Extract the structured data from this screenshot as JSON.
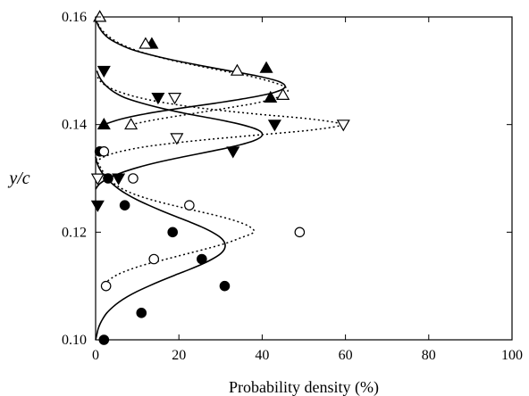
{
  "chart_data": {
    "type": "scatter",
    "title": "",
    "xlabel": "Probability density (%)",
    "ylabel": "y/c",
    "xlim": [
      0,
      100
    ],
    "ylim": [
      0.1,
      0.16
    ],
    "xticks": [
      "0",
      "20",
      "40",
      "60",
      "80",
      "100"
    ],
    "yticks": [
      "0.10",
      "0.12",
      "0.14",
      "0.16"
    ],
    "grid": false,
    "series": [
      {
        "marker": "filled-circle",
        "points": [
          [
            2,
            0.1
          ],
          [
            11,
            0.105
          ],
          [
            31,
            0.11
          ],
          [
            25.5,
            0.115
          ],
          [
            18.5,
            0.12
          ],
          [
            7,
            0.125
          ],
          [
            3,
            0.13
          ],
          [
            1,
            0.135
          ]
        ]
      },
      {
        "marker": "open-circle",
        "points": [
          [
            2.5,
            0.11
          ],
          [
            14,
            0.115
          ],
          [
            49,
            0.12
          ],
          [
            22.5,
            0.125
          ],
          [
            9,
            0.13
          ],
          [
            2,
            0.135
          ]
        ]
      },
      {
        "marker": "filled-triangle-down",
        "points": [
          [
            0.5,
            0.125
          ],
          [
            5.5,
            0.13
          ],
          [
            33,
            0.135
          ],
          [
            43,
            0.14
          ],
          [
            15,
            0.145
          ],
          [
            2,
            0.15
          ]
        ]
      },
      {
        "marker": "open-triangle-down",
        "points": [
          [
            0.5,
            0.13
          ],
          [
            19.5,
            0.1375
          ],
          [
            59.5,
            0.14
          ],
          [
            19,
            0.145
          ]
        ]
      },
      {
        "marker": "filled-triangle-up",
        "points": [
          [
            2,
            0.14
          ],
          [
            42,
            0.145
          ],
          [
            41,
            0.1505
          ],
          [
            13.5,
            0.155
          ],
          [
            1,
            0.16
          ]
        ]
      },
      {
        "marker": "open-triangle-up",
        "points": [
          [
            8.5,
            0.14
          ],
          [
            45,
            0.1455
          ],
          [
            34,
            0.15
          ],
          [
            12,
            0.155
          ],
          [
            1,
            0.16
          ]
        ]
      }
    ],
    "fitted_curves": [
      {
        "style": "solid",
        "points": [
          [
            0,
            0.1
          ],
          [
            0.3,
            0.101
          ],
          [
            0.6,
            0.102
          ],
          [
            1.1,
            0.103
          ],
          [
            1.8,
            0.104
          ],
          [
            2.7,
            0.105
          ],
          [
            4.0,
            0.106
          ],
          [
            5.6,
            0.107
          ],
          [
            7.6,
            0.108
          ],
          [
            10.0,
            0.109
          ],
          [
            12.8,
            0.11
          ],
          [
            15.8,
            0.111
          ],
          [
            19.0,
            0.112
          ],
          [
            22.3,
            0.113
          ],
          [
            25.4,
            0.114
          ],
          [
            28.0,
            0.115
          ],
          [
            30.0,
            0.116
          ],
          [
            31.0,
            0.117
          ],
          [
            31.0,
            0.118
          ],
          [
            30.0,
            0.119
          ],
          [
            28.0,
            0.12
          ],
          [
            25.4,
            0.121
          ],
          [
            22.3,
            0.122
          ],
          [
            19.0,
            0.123
          ],
          [
            15.8,
            0.124
          ],
          [
            12.8,
            0.125
          ],
          [
            10.0,
            0.126
          ],
          [
            7.6,
            0.127
          ],
          [
            5.6,
            0.128
          ],
          [
            4.0,
            0.129
          ],
          [
            2.7,
            0.13
          ],
          [
            1.6,
            0.131
          ],
          [
            0.8,
            0.132
          ],
          [
            0.3,
            0.133
          ],
          [
            0.0,
            0.134
          ]
        ]
      },
      {
        "style": "dotted",
        "points": [
          [
            2.0,
            0.1105
          ],
          [
            3.0,
            0.111
          ],
          [
            5.0,
            0.112
          ],
          [
            8.0,
            0.113
          ],
          [
            12.0,
            0.114
          ],
          [
            17.0,
            0.115
          ],
          [
            22.0,
            0.116
          ],
          [
            27.0,
            0.117
          ],
          [
            31.5,
            0.118
          ],
          [
            35.0,
            0.119
          ],
          [
            38.0,
            0.12
          ],
          [
            37.0,
            0.121
          ],
          [
            34.0,
            0.122
          ],
          [
            29.5,
            0.123
          ],
          [
            24.0,
            0.124
          ],
          [
            18.5,
            0.125
          ],
          [
            13.5,
            0.126
          ],
          [
            9.5,
            0.127
          ],
          [
            6.5,
            0.128
          ],
          [
            4.5,
            0.129
          ],
          [
            3.0,
            0.13
          ],
          [
            2.0,
            0.131
          ],
          [
            1.2,
            0.132
          ],
          [
            0.5,
            0.133
          ],
          [
            0.0,
            0.134
          ]
        ]
      },
      {
        "style": "solid",
        "points": [
          [
            0.0,
            0.128
          ],
          [
            1.0,
            0.129
          ],
          [
            3.0,
            0.13
          ],
          [
            6.0,
            0.131
          ],
          [
            10.0,
            0.132
          ],
          [
            15.0,
            0.133
          ],
          [
            21.0,
            0.134
          ],
          [
            27.5,
            0.135
          ],
          [
            33.5,
            0.136
          ],
          [
            38.0,
            0.137
          ],
          [
            40.0,
            0.138
          ],
          [
            39.0,
            0.139
          ],
          [
            35.0,
            0.14
          ],
          [
            29.0,
            0.141
          ],
          [
            22.0,
            0.142
          ],
          [
            16.0,
            0.143
          ],
          [
            11.0,
            0.144
          ],
          [
            7.0,
            0.145
          ],
          [
            4.5,
            0.146
          ],
          [
            2.8,
            0.147
          ],
          [
            1.6,
            0.148
          ],
          [
            0.8,
            0.149
          ],
          [
            0.3,
            0.15
          ]
        ]
      },
      {
        "style": "dotted",
        "points": [
          [
            0.0,
            0.133
          ],
          [
            2.0,
            0.134
          ],
          [
            6.0,
            0.135
          ],
          [
            13.0,
            0.136
          ],
          [
            24.0,
            0.137
          ],
          [
            38.0,
            0.138
          ],
          [
            52.0,
            0.139
          ],
          [
            59.0,
            0.14
          ],
          [
            52.0,
            0.141
          ],
          [
            38.0,
            0.142
          ],
          [
            26.0,
            0.143
          ],
          [
            17.0,
            0.144
          ],
          [
            10.5,
            0.145
          ],
          [
            6.0,
            0.146
          ],
          [
            3.0,
            0.147
          ],
          [
            1.2,
            0.148
          ],
          [
            0.3,
            0.149
          ]
        ]
      },
      {
        "style": "solid",
        "points": [
          [
            2.0,
            0.14
          ],
          [
            6.0,
            0.141
          ],
          [
            12.0,
            0.142
          ],
          [
            20.0,
            0.143
          ],
          [
            29.0,
            0.144
          ],
          [
            37.0,
            0.145
          ],
          [
            43.0,
            0.146
          ],
          [
            45.5,
            0.147
          ],
          [
            44.0,
            0.148
          ],
          [
            39.0,
            0.149
          ],
          [
            32.0,
            0.15
          ],
          [
            25.0,
            0.151
          ],
          [
            18.5,
            0.152
          ],
          [
            13.0,
            0.153
          ],
          [
            8.5,
            0.154
          ],
          [
            5.5,
            0.155
          ],
          [
            3.2,
            0.156
          ],
          [
            1.8,
            0.157
          ],
          [
            0.9,
            0.158
          ],
          [
            0.3,
            0.159
          ],
          [
            0.0,
            0.16
          ]
        ]
      },
      {
        "style": "dotted",
        "points": [
          [
            8.5,
            0.14
          ],
          [
            15.0,
            0.141
          ],
          [
            23.0,
            0.142
          ],
          [
            31.0,
            0.143
          ],
          [
            38.5,
            0.144
          ],
          [
            43.5,
            0.145
          ],
          [
            46.0,
            0.146
          ],
          [
            45.5,
            0.147
          ],
          [
            42.0,
            0.148
          ],
          [
            37.0,
            0.149
          ],
          [
            30.5,
            0.15
          ],
          [
            24.0,
            0.151
          ],
          [
            18.0,
            0.152
          ],
          [
            13.0,
            0.153
          ],
          [
            9.0,
            0.154
          ],
          [
            6.0,
            0.155
          ],
          [
            3.8,
            0.156
          ],
          [
            2.2,
            0.157
          ],
          [
            1.1,
            0.158
          ],
          [
            0.4,
            0.159
          ],
          [
            0.0,
            0.16
          ]
        ]
      }
    ]
  }
}
